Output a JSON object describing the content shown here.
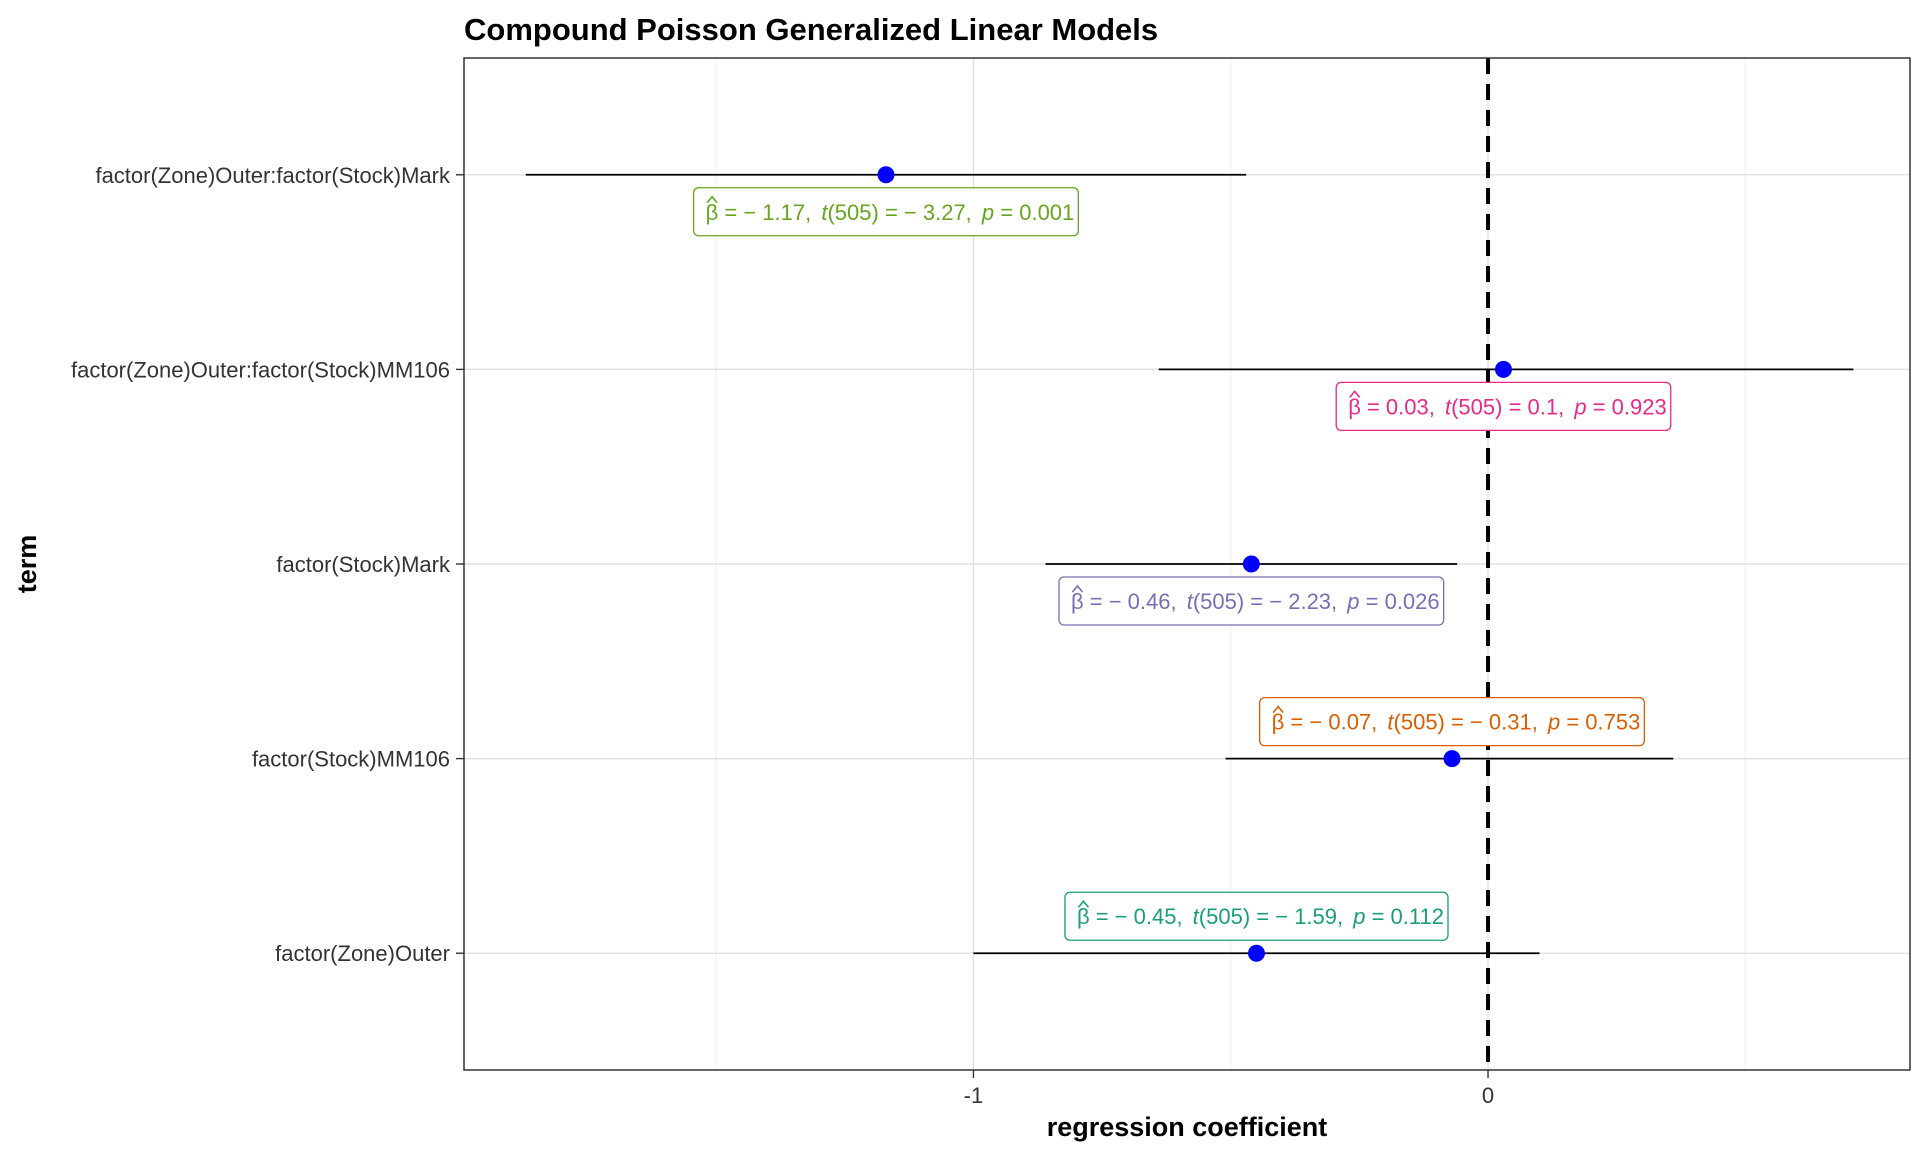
{
  "chart_data": {
    "type": "scatter",
    "subtype": "coefficient-plot-with-confidence-intervals",
    "title": "Compound Poisson Generalized Linear Models",
    "xlabel": "regression coefficient",
    "ylabel": "term",
    "xlim": [
      -1.99,
      0.82
    ],
    "x_ticks": [
      {
        "value": -1,
        "label": "-1"
      },
      {
        "value": 0,
        "label": "0"
      }
    ],
    "grid": true,
    "reference_line": {
      "x": 0,
      "style": "dashed"
    },
    "point_color": "#0000FF",
    "terms": [
      {
        "term": "factor(Zone)Outer:factor(Stock)Mark",
        "estimate": -1.17,
        "conf_low": -1.87,
        "conf_high": -0.47,
        "label": {
          "beta": "− 1.17",
          "t": "− 3.27",
          "df": "505",
          "p": "0.001"
        },
        "label_color": "#66A61E",
        "label_side": "below"
      },
      {
        "term": "factor(Zone)Outer:factor(Stock)MM106",
        "estimate": 0.03,
        "conf_low": -0.64,
        "conf_high": 0.71,
        "label": {
          "beta": "0.03",
          "t": "0.1",
          "df": "505",
          "p": "0.923"
        },
        "label_color": "#E7298A",
        "label_side": "below"
      },
      {
        "term": "factor(Stock)Mark",
        "estimate": -0.46,
        "conf_low": -0.86,
        "conf_high": -0.06,
        "label": {
          "beta": "− 0.46",
          "t": "− 2.23",
          "df": "505",
          "p": "0.026"
        },
        "label_color": "#7570B3",
        "label_side": "below"
      },
      {
        "term": "factor(Stock)MM106",
        "estimate": -0.07,
        "conf_low": -0.51,
        "conf_high": 0.36,
        "label": {
          "beta": "− 0.07",
          "t": "− 0.31",
          "df": "505",
          "p": "0.753"
        },
        "label_color": "#D95F02",
        "label_side": "above"
      },
      {
        "term": "factor(Zone)Outer",
        "estimate": -0.45,
        "conf_low": -1.0,
        "conf_high": 0.1,
        "label": {
          "beta": "− 0.45",
          "t": "− 1.59",
          "df": "505",
          "p": "0.112"
        },
        "label_color": "#1B9E77",
        "label_side": "above"
      }
    ]
  }
}
